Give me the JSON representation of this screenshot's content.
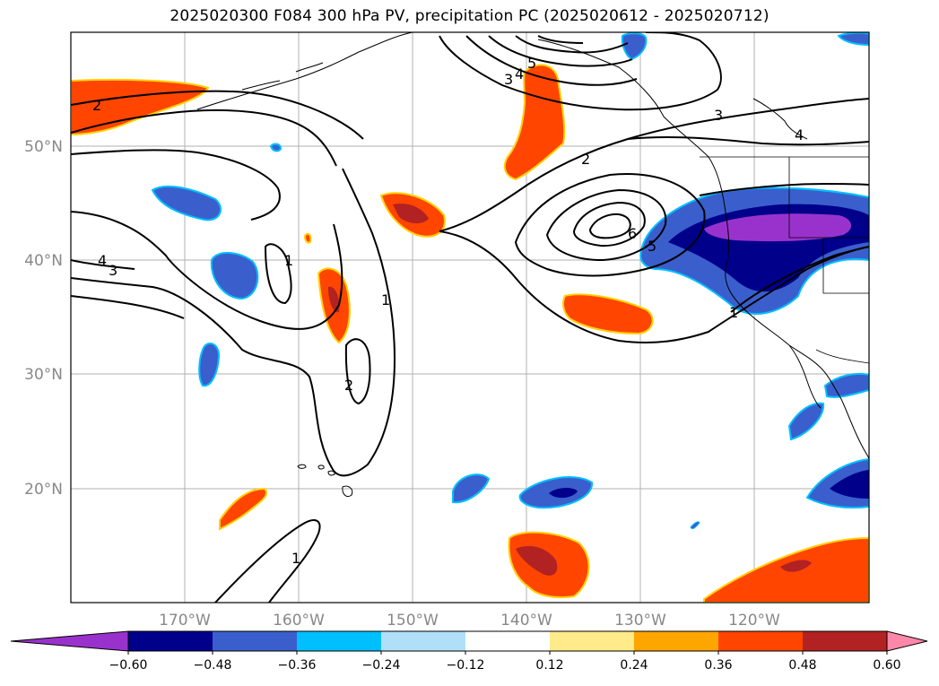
{
  "title": "2025020300 F084 300 hPa PV, precipitation PC (2025020612 - 2025020712)",
  "map": {
    "lat_labels": [
      "50°N",
      "40°N",
      "30°N",
      "20°N"
    ],
    "lon_labels": [
      "170°W",
      "160°W",
      "150°W",
      "140°W",
      "130°W",
      "120°W"
    ],
    "extent": {
      "lon": [
        -180,
        -110
      ],
      "lat": [
        10,
        60
      ]
    }
  },
  "pv_contour_labels": [
    "2",
    "5",
    "4",
    "3",
    "3",
    "4",
    "2",
    "6",
    "5",
    "1",
    "4",
    "3",
    "1",
    "1",
    "2",
    "1"
  ],
  "colorbar": {
    "ticks": [
      "−0.60",
      "−0.48",
      "−0.36",
      "−0.24",
      "−0.12",
      "0.12",
      "0.24",
      "0.36",
      "0.48",
      "0.60"
    ],
    "colors": [
      "#9932cc",
      "#00008b",
      "#3a5fcd",
      "#00bfff",
      "#b0e0f8",
      "#ffffff",
      "#ffeb8a",
      "#ffa500",
      "#ff4500",
      "#b22222",
      "#ff88aa"
    ]
  }
}
